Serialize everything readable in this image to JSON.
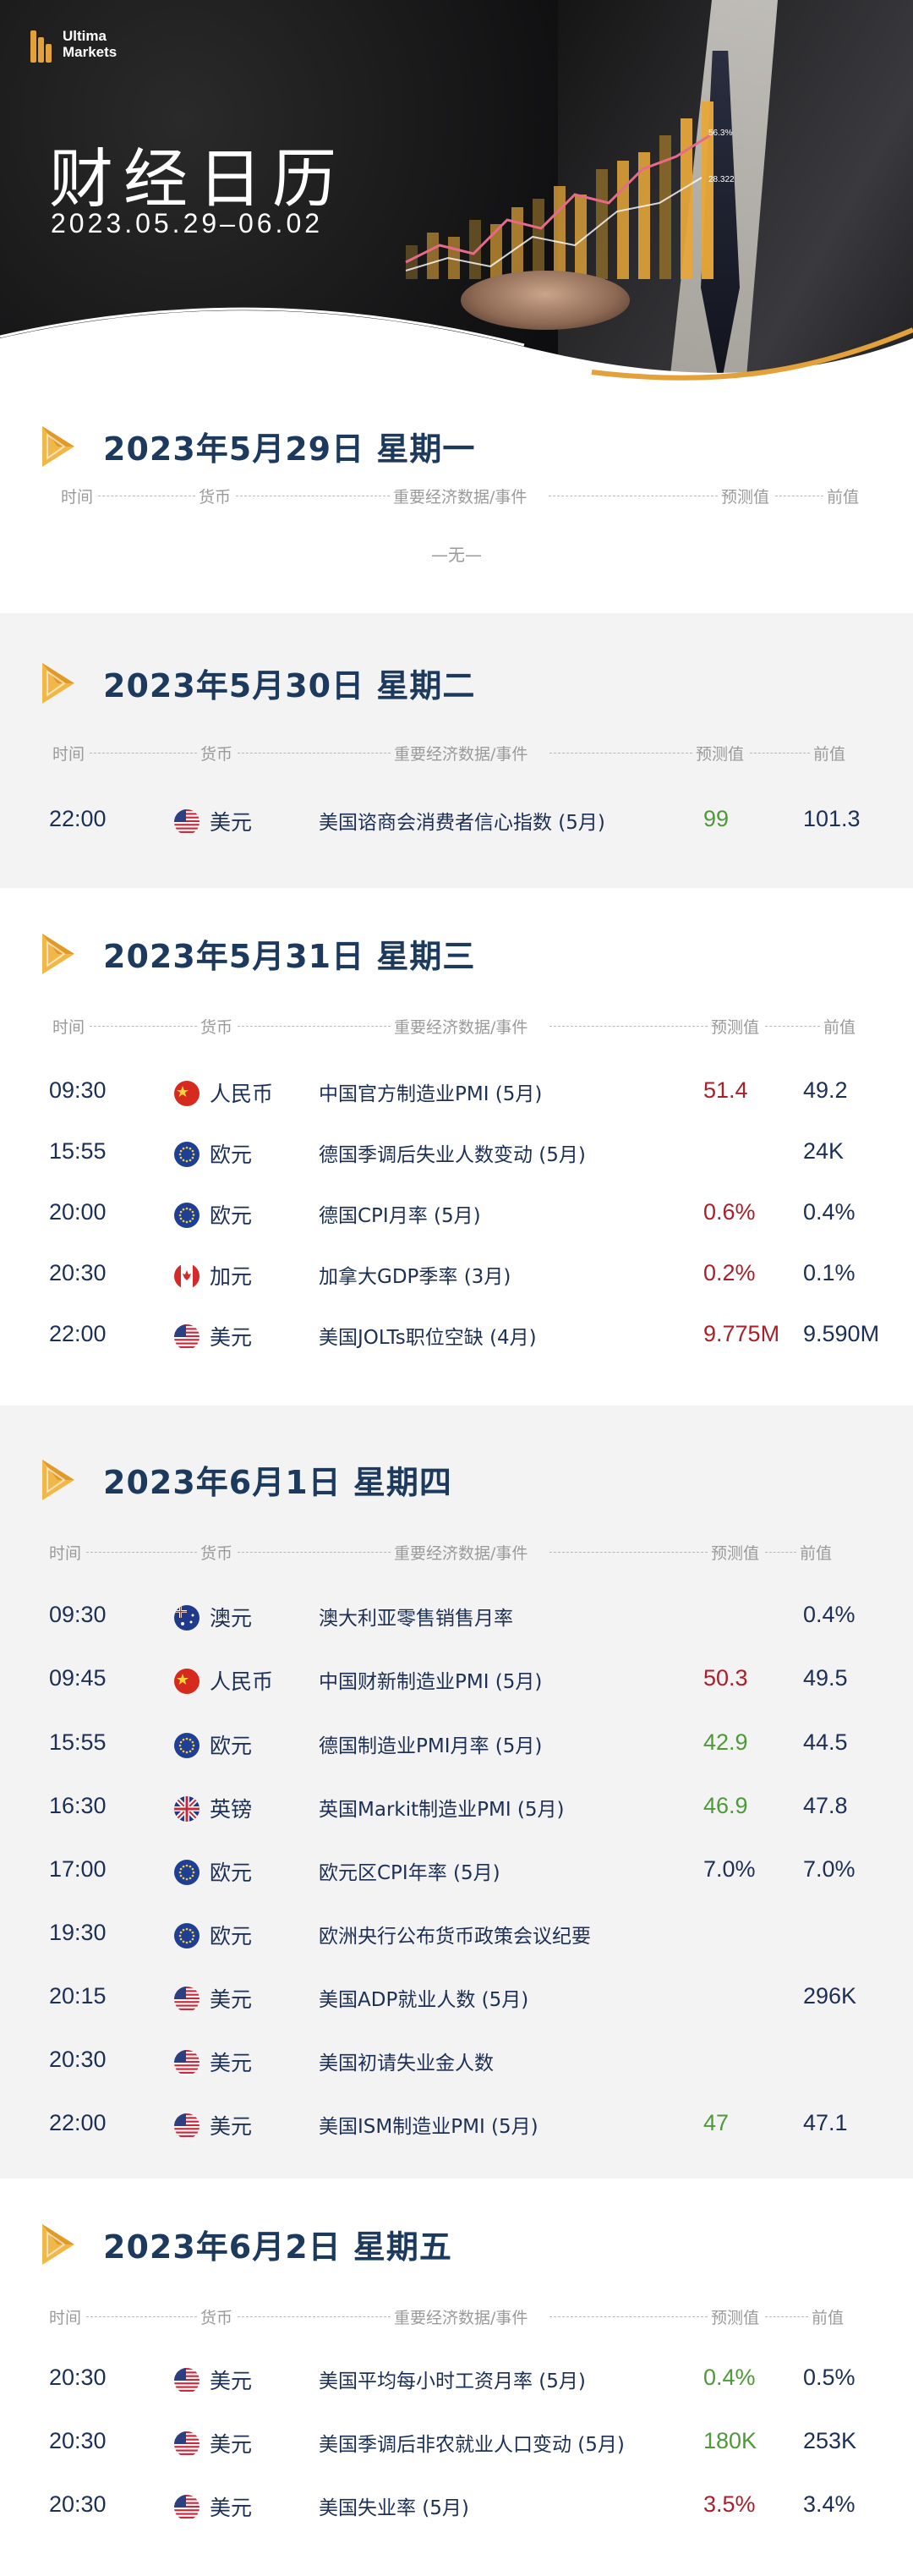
{
  "brand": {
    "line1": "Ultima",
    "line2": "Markets"
  },
  "hero": {
    "title": "财经日历",
    "date_range": "2023.05.29–06.02",
    "chart_labels": {
      "a": "56.3%",
      "b": "28.322"
    }
  },
  "columns": {
    "time": "时间",
    "currency": "货币",
    "event": "重要经济数据/事件",
    "forecast": "预测值",
    "previous": "前值"
  },
  "colors": {
    "accent": "#e2a13a",
    "title": "#1c3a5e",
    "red": "#a8202b",
    "green": "#4d9a38",
    "grey_bg": "#f3f3f3"
  },
  "days": [
    {
      "title": "2023年5月29日  星期一",
      "none_text": "—无—",
      "rows": []
    },
    {
      "title": "2023年5月30日  星期二",
      "rows": [
        {
          "time": "22:00",
          "flag": "us-flag-icon",
          "currency": "美元",
          "event": "美国谘商会消费者信心指数 (5月)",
          "forecast": "99",
          "forecast_color": "green",
          "previous": "101.3"
        }
      ]
    },
    {
      "title": "2023年5月31日  星期三",
      "rows": [
        {
          "time": "09:30",
          "flag": "cn-flag-icon",
          "currency": "人民币",
          "event": "中国官方制造业PMI (5月)",
          "forecast": "51.4",
          "forecast_color": "red",
          "previous": "49.2"
        },
        {
          "time": "15:55",
          "flag": "eu-flag-icon",
          "currency": "欧元",
          "event": "德国季调后失业人数变动 (5月)",
          "forecast": "",
          "forecast_color": "",
          "previous": "24K"
        },
        {
          "time": "20:00",
          "flag": "eu-flag-icon",
          "currency": "欧元",
          "event": "德国CPI月率 (5月)",
          "forecast": "0.6%",
          "forecast_color": "red",
          "previous": "0.4%"
        },
        {
          "time": "20:30",
          "flag": "ca-flag-icon",
          "currency": "加元",
          "event": "加拿大GDP季率 (3月)",
          "forecast": "0.2%",
          "forecast_color": "red",
          "previous": "0.1%"
        },
        {
          "time": "22:00",
          "flag": "us-flag-icon",
          "currency": "美元",
          "event": "美国JOLTs职位空缺 (4月)",
          "forecast": "9.775M",
          "forecast_color": "red",
          "previous": "9.590M"
        }
      ]
    },
    {
      "title": "2023年6月1日  星期四",
      "rows": [
        {
          "time": "09:30",
          "flag": "au-flag-icon",
          "currency": "澳元",
          "event": "澳大利亚零售销售月率",
          "forecast": "",
          "forecast_color": "",
          "previous": "0.4%"
        },
        {
          "time": "09:45",
          "flag": "cn-flag-icon",
          "currency": "人民币",
          "event": "中国财新制造业PMI (5月)",
          "forecast": "50.3",
          "forecast_color": "red",
          "previous": "49.5"
        },
        {
          "time": "15:55",
          "flag": "eu-flag-icon",
          "currency": "欧元",
          "event": "德国制造业PMI月率 (5月)",
          "forecast": "42.9",
          "forecast_color": "green",
          "previous": "44.5"
        },
        {
          "time": "16:30",
          "flag": "uk-flag-icon",
          "currency": "英镑",
          "event": "英国Markit制造业PMI (5月)",
          "forecast": "46.9",
          "forecast_color": "green",
          "previous": "47.8"
        },
        {
          "time": "17:00",
          "flag": "eu-flag-icon",
          "currency": "欧元",
          "event": "欧元区CPI年率 (5月)",
          "forecast": "7.0%",
          "forecast_color": "",
          "previous": "7.0%"
        },
        {
          "time": "19:30",
          "flag": "eu-flag-icon",
          "currency": "欧元",
          "event": "欧洲央行公布货币政策会议纪要",
          "forecast": "",
          "forecast_color": "",
          "previous": ""
        },
        {
          "time": "20:15",
          "flag": "us-flag-icon",
          "currency": "美元",
          "event": "美国ADP就业人数 (5月)",
          "forecast": "",
          "forecast_color": "",
          "previous": "296K"
        },
        {
          "time": "20:30",
          "flag": "us-flag-icon",
          "currency": "美元",
          "event": "美国初请失业金人数",
          "forecast": "",
          "forecast_color": "",
          "previous": ""
        },
        {
          "time": "22:00",
          "flag": "us-flag-icon",
          "currency": "美元",
          "event": "美国ISM制造业PMI (5月)",
          "forecast": "47",
          "forecast_color": "green",
          "previous": "47.1"
        }
      ]
    },
    {
      "title": "2023年6月2日  星期五",
      "rows": [
        {
          "time": "20:30",
          "flag": "us-flag-icon",
          "currency": "美元",
          "event": "美国平均每小时工资月率 (5月)",
          "forecast": "0.4%",
          "forecast_color": "green",
          "previous": "0.5%"
        },
        {
          "time": "20:30",
          "flag": "us-flag-icon",
          "currency": "美元",
          "event": "美国季调后非农就业人口变动 (5月)",
          "forecast": "180K",
          "forecast_color": "green",
          "previous": "253K"
        },
        {
          "time": "20:30",
          "flag": "us-flag-icon",
          "currency": "美元",
          "event": "美国失业率 (5月)",
          "forecast": "3.5%",
          "forecast_color": "red",
          "previous": "3.4%"
        }
      ]
    }
  ]
}
